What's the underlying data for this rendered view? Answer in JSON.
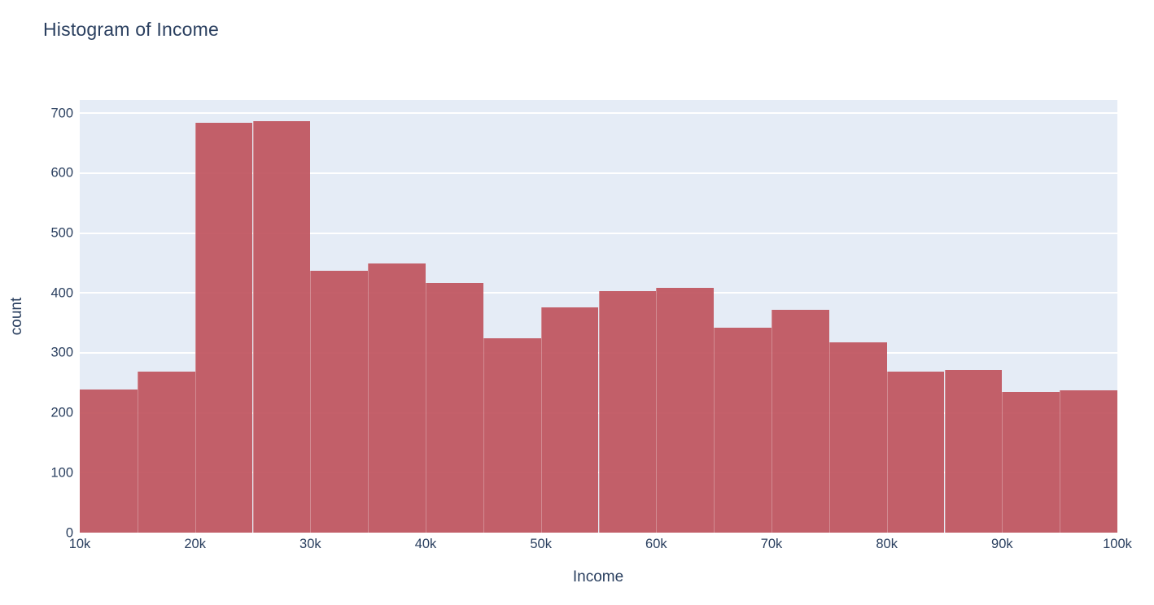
{
  "title": "Histogram of Income",
  "colors": {
    "title_text": "#2a3f5f",
    "tick_text": "#2a3f5f",
    "plot_background": "#e5ecf6",
    "gridline": "#ffffff",
    "bar_fill": "#c0555f",
    "bar_opacity": 0.93,
    "page_background": "#ffffff"
  },
  "chart_data": {
    "type": "bar",
    "subtype": "histogram",
    "title": "Histogram of Income",
    "xlabel": "Income",
    "ylabel": "count",
    "bin_start": 10000,
    "bin_size": 5000,
    "categories": [
      "10k-15k",
      "15k-20k",
      "20k-25k",
      "25k-30k",
      "30k-35k",
      "35k-40k",
      "40k-45k",
      "45k-50k",
      "50k-55k",
      "55k-60k",
      "60k-65k",
      "65k-70k",
      "70k-75k",
      "75k-80k",
      "80k-85k",
      "85k-90k",
      "90k-95k",
      "95k-100k"
    ],
    "values": [
      239,
      269,
      684,
      687,
      437,
      449,
      417,
      324,
      376,
      403,
      408,
      342,
      372,
      318,
      269,
      271,
      235,
      238
    ],
    "x_ticks": [
      {
        "value": 10000,
        "label": "10k"
      },
      {
        "value": 20000,
        "label": "20k"
      },
      {
        "value": 30000,
        "label": "30k"
      },
      {
        "value": 40000,
        "label": "40k"
      },
      {
        "value": 50000,
        "label": "50k"
      },
      {
        "value": 60000,
        "label": "60k"
      },
      {
        "value": 70000,
        "label": "70k"
      },
      {
        "value": 80000,
        "label": "80k"
      },
      {
        "value": 90000,
        "label": "90k"
      },
      {
        "value": 100000,
        "label": "100k"
      }
    ],
    "y_ticks": [
      0,
      100,
      200,
      300,
      400,
      500,
      600,
      700
    ],
    "xlim": [
      10000,
      100000
    ],
    "ylim": [
      0,
      722
    ],
    "grid": true,
    "legend": false
  }
}
